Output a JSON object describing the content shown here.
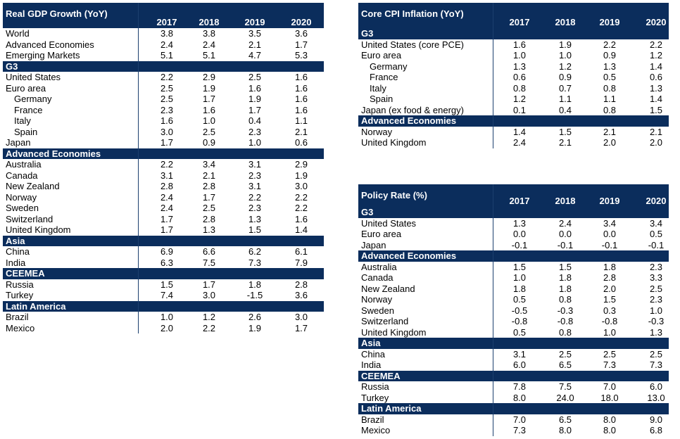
{
  "tables": [
    {
      "id": "gdp",
      "title": "Real GDP Growth (YoY)",
      "years": [
        "2017",
        "2018",
        "2019",
        "2020"
      ],
      "rows": [
        {
          "type": "data",
          "label": "World",
          "values": [
            "3.8",
            "3.8",
            "3.5",
            "3.6"
          ]
        },
        {
          "type": "data",
          "label": "Advanced Economies",
          "values": [
            "2.4",
            "2.4",
            "2.1",
            "1.7"
          ]
        },
        {
          "type": "data",
          "label": "Emerging Markets",
          "values": [
            "5.1",
            "5.1",
            "4.7",
            "5.3"
          ]
        },
        {
          "type": "section",
          "label": "G3"
        },
        {
          "type": "data",
          "label": "United States",
          "values": [
            "2.2",
            "2.9",
            "2.5",
            "1.6"
          ]
        },
        {
          "type": "data",
          "label": "Euro area",
          "values": [
            "2.5",
            "1.9",
            "1.6",
            "1.6"
          ]
        },
        {
          "type": "data",
          "label": "Germany",
          "indent": true,
          "values": [
            "2.5",
            "1.7",
            "1.9",
            "1.6"
          ]
        },
        {
          "type": "data",
          "label": "France",
          "indent": true,
          "values": [
            "2.3",
            "1.6",
            "1.7",
            "1.6"
          ]
        },
        {
          "type": "data",
          "label": "Italy",
          "indent": true,
          "values": [
            "1.6",
            "1.0",
            "0.4",
            "1.1"
          ]
        },
        {
          "type": "data",
          "label": "Spain",
          "indent": true,
          "values": [
            "3.0",
            "2.5",
            "2.3",
            "2.1"
          ]
        },
        {
          "type": "data",
          "label": "Japan",
          "values": [
            "1.7",
            "0.9",
            "1.0",
            "0.6"
          ]
        },
        {
          "type": "section",
          "label": "Advanced Economies"
        },
        {
          "type": "data",
          "label": "Australia",
          "values": [
            "2.2",
            "3.4",
            "3.1",
            "2.9"
          ]
        },
        {
          "type": "data",
          "label": "Canada",
          "values": [
            "3.1",
            "2.1",
            "2.3",
            "1.9"
          ]
        },
        {
          "type": "data",
          "label": "New Zealand",
          "values": [
            "2.8",
            "2.8",
            "3.1",
            "3.0"
          ]
        },
        {
          "type": "data",
          "label": "Norway",
          "values": [
            "2.4",
            "1.7",
            "2.2",
            "2.2"
          ]
        },
        {
          "type": "data",
          "label": "Sweden",
          "values": [
            "2.4",
            "2.5",
            "2.3",
            "2.2"
          ]
        },
        {
          "type": "data",
          "label": "Switzerland",
          "values": [
            "1.7",
            "2.8",
            "1.3",
            "1.6"
          ]
        },
        {
          "type": "data",
          "label": "United Kingdom",
          "values": [
            "1.7",
            "1.3",
            "1.5",
            "1.4"
          ]
        },
        {
          "type": "section",
          "label": "Asia"
        },
        {
          "type": "data",
          "label": "China",
          "values": [
            "6.9",
            "6.6",
            "6.2",
            "6.1"
          ]
        },
        {
          "type": "data",
          "label": "India",
          "values": [
            "6.3",
            "7.5",
            "7.3",
            "7.9"
          ]
        },
        {
          "type": "section",
          "label": "CEEMEA"
        },
        {
          "type": "data",
          "label": "Russia",
          "values": [
            "1.5",
            "1.7",
            "1.8",
            "2.8"
          ]
        },
        {
          "type": "data",
          "label": "Turkey",
          "values": [
            "7.4",
            "3.0",
            "-1.5",
            "3.6"
          ]
        },
        {
          "type": "section",
          "label": "Latin America"
        },
        {
          "type": "data",
          "label": "Brazil",
          "values": [
            "1.0",
            "1.2",
            "2.6",
            "3.0"
          ]
        },
        {
          "type": "data",
          "label": "Mexico",
          "values": [
            "2.0",
            "2.2",
            "1.9",
            "1.7"
          ]
        }
      ]
    },
    {
      "id": "cpi",
      "title": "Core CPI Inflation (YoY)",
      "years": [
        "2017",
        "2018",
        "2019",
        "2020"
      ],
      "rows": [
        {
          "type": "section",
          "label": "G3"
        },
        {
          "type": "data",
          "label": "United States (core PCE)",
          "values": [
            "1.6",
            "1.9",
            "2.2",
            "2.2"
          ]
        },
        {
          "type": "data",
          "label": "Euro area",
          "values": [
            "1.0",
            "1.0",
            "0.9",
            "1.2"
          ]
        },
        {
          "type": "data",
          "label": "Germany",
          "indent": true,
          "values": [
            "1.3",
            "1.2",
            "1.3",
            "1.4"
          ]
        },
        {
          "type": "data",
          "label": "France",
          "indent": true,
          "values": [
            "0.6",
            "0.9",
            "0.5",
            "0.6"
          ]
        },
        {
          "type": "data",
          "label": "Italy",
          "indent": true,
          "values": [
            "0.8",
            "0.7",
            "0.8",
            "1.3"
          ]
        },
        {
          "type": "data",
          "label": "Spain",
          "indent": true,
          "values": [
            "1.2",
            "1.1",
            "1.1",
            "1.4"
          ]
        },
        {
          "type": "data",
          "label": "Japan (ex food & energy)",
          "values": [
            "0.1",
            "0.4",
            "0.8",
            "1.5"
          ]
        },
        {
          "type": "section",
          "label": "Advanced Economies"
        },
        {
          "type": "data",
          "label": "Norway",
          "values": [
            "1.4",
            "1.5",
            "2.1",
            "2.1"
          ]
        },
        {
          "type": "data",
          "label": "United Kingdom",
          "values": [
            "2.4",
            "2.1",
            "2.0",
            "2.0"
          ]
        }
      ]
    },
    {
      "id": "policy",
      "title": "Policy Rate (%)",
      "years": [
        "2017",
        "2018",
        "2019",
        "2020"
      ],
      "rows": [
        {
          "type": "section",
          "label": "G3"
        },
        {
          "type": "data",
          "label": "United States",
          "values": [
            "1.3",
            "2.4",
            "3.4",
            "3.4"
          ]
        },
        {
          "type": "data",
          "label": "Euro area",
          "values": [
            "0.0",
            "0.0",
            "0.0",
            "0.5"
          ]
        },
        {
          "type": "data",
          "label": "Japan",
          "values": [
            "-0.1",
            "-0.1",
            "-0.1",
            "-0.1"
          ]
        },
        {
          "type": "section",
          "label": "Advanced Economies"
        },
        {
          "type": "data",
          "label": "Australia",
          "values": [
            "1.5",
            "1.5",
            "1.8",
            "2.3"
          ]
        },
        {
          "type": "data",
          "label": "Canada",
          "values": [
            "1.0",
            "1.8",
            "2.8",
            "3.3"
          ]
        },
        {
          "type": "data",
          "label": "New Zealand",
          "values": [
            "1.8",
            "1.8",
            "2.0",
            "2.5"
          ]
        },
        {
          "type": "data",
          "label": "Norway",
          "values": [
            "0.5",
            "0.8",
            "1.5",
            "2.3"
          ]
        },
        {
          "type": "data",
          "label": "Sweden",
          "values": [
            "-0.5",
            "-0.3",
            "0.3",
            "1.0"
          ]
        },
        {
          "type": "data",
          "label": "Switzerland",
          "values": [
            "-0.8",
            "-0.8",
            "-0.8",
            "-0.3"
          ]
        },
        {
          "type": "data",
          "label": "United Kingdom",
          "values": [
            "0.5",
            "0.8",
            "1.0",
            "1.3"
          ]
        },
        {
          "type": "section",
          "label": "Asia"
        },
        {
          "type": "data",
          "label": "China",
          "values": [
            "3.1",
            "2.5",
            "2.5",
            "2.5"
          ]
        },
        {
          "type": "data",
          "label": "India",
          "values": [
            "6.0",
            "6.5",
            "7.3",
            "7.3"
          ]
        },
        {
          "type": "section",
          "label": "CEEMEA"
        },
        {
          "type": "data",
          "label": "Russia",
          "values": [
            "7.8",
            "7.5",
            "7.0",
            "6.0"
          ]
        },
        {
          "type": "data",
          "label": "Turkey",
          "values": [
            "8.0",
            "24.0",
            "18.0",
            "13.0"
          ]
        },
        {
          "type": "section",
          "label": "Latin America"
        },
        {
          "type": "data",
          "label": "Brazil",
          "values": [
            "7.0",
            "6.5",
            "8.0",
            "9.0"
          ]
        },
        {
          "type": "data",
          "label": "Mexico",
          "values": [
            "7.3",
            "8.0",
            "8.0",
            "6.8"
          ]
        }
      ]
    }
  ]
}
